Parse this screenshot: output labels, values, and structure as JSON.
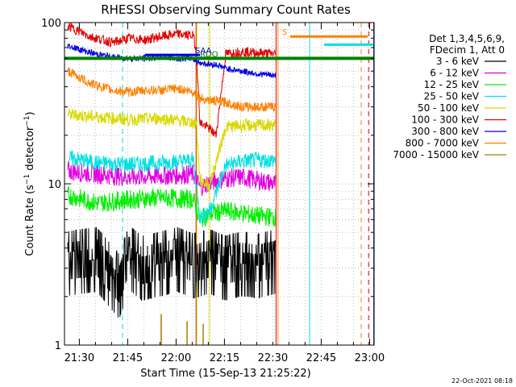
{
  "chart_data": {
    "type": "line",
    "title": "RHESSI Observing Summary Count Rates",
    "xlabel": "Start Time (15-Sep-13 21:25:22)",
    "ylabel_main": "Count Rate (s",
    "ylabel_sup": "−1",
    "ylabel_tail": " detector",
    "ylabel_end": ")",
    "x_unit": "minutes after 21:25:22",
    "xlim": [
      0,
      96
    ],
    "ylim": [
      1,
      100
    ],
    "y_scale": "log",
    "grid": true,
    "x_ticks": [
      {
        "label": "21:30",
        "value": 4.6
      },
      {
        "label": "21:45",
        "value": 19.6
      },
      {
        "label": "22:00",
        "value": 34.6
      },
      {
        "label": "22:15",
        "value": 49.6
      },
      {
        "label": "22:30",
        "value": 64.6
      },
      {
        "label": "22:45",
        "value": 79.6
      },
      {
        "label": "23:00",
        "value": 94.6
      }
    ],
    "y_ticks": [
      {
        "label": "1",
        "value": 1
      },
      {
        "label": "10",
        "value": 10
      },
      {
        "label": "100",
        "value": 100
      }
    ],
    "legend": {
      "placement": "right",
      "header": [
        "Det 1,3,4,5,6,9,",
        "FDecim 1, Att 0"
      ]
    },
    "series": [
      {
        "name": "3 - 6 keV",
        "color": "#000000",
        "x": [
          1,
          10,
          17,
          20,
          24,
          30,
          35,
          40,
          45,
          50,
          55,
          60,
          65.5
        ],
        "y": [
          3.2,
          3.4,
          2.3,
          3.5,
          3.0,
          3.2,
          3.4,
          3.1,
          3.3,
          3.0,
          3.2,
          3.1,
          3.3
        ]
      },
      {
        "name": "6 - 12 keV",
        "color": "#e000e0",
        "x": [
          1,
          10,
          20,
          30,
          40,
          42,
          45,
          50,
          55,
          60,
          65.5
        ],
        "y": [
          12,
          11.5,
          11,
          11.2,
          11.5,
          9.5,
          10.2,
          10.8,
          11,
          10.5,
          10
        ]
      },
      {
        "name": "12 - 25 keV",
        "color": "#00ee00",
        "x": [
          1,
          10,
          20,
          30,
          40,
          42,
          45,
          50,
          55,
          60,
          65.5
        ],
        "y": [
          8.5,
          7.6,
          8.0,
          8.2,
          8.0,
          6.0,
          6.5,
          6.8,
          6.6,
          6.3,
          6.2
        ]
      },
      {
        "name": "25 - 50 keV",
        "color": "#00e0e0",
        "x": [
          1,
          10,
          20,
          30,
          40,
          42,
          45,
          50,
          55,
          60,
          65.5
        ],
        "y": [
          14.5,
          13.5,
          13.2,
          13.5,
          14.0,
          6.2,
          6.8,
          13.0,
          13.8,
          14.0,
          14.0
        ]
      },
      {
        "name": "50 - 100 keV",
        "color": "#d8d800",
        "x": [
          1,
          10,
          20,
          30,
          40,
          41,
          42,
          45,
          50,
          55,
          60,
          65.5
        ],
        "y": [
          27,
          26,
          25,
          25.5,
          24,
          23,
          10.5,
          9.8,
          22.5,
          23,
          23,
          23
        ]
      },
      {
        "name": "100 - 300 keV",
        "color": "#e00000",
        "x": [
          1,
          8,
          15,
          20,
          25,
          30,
          35,
          40,
          41,
          42,
          45,
          47,
          50,
          55,
          60,
          65.5
        ],
        "y": [
          95,
          82,
          75,
          80,
          78,
          82,
          85,
          83,
          60,
          24,
          22,
          20,
          64,
          66,
          65,
          64
        ]
      },
      {
        "name": "300 - 800 keV",
        "color": "#0000e0",
        "x": [
          1,
          8,
          15,
          20,
          25,
          30,
          35,
          40,
          41,
          45,
          47,
          50,
          55,
          60,
          65.5
        ],
        "y": [
          72,
          65,
          61,
          60,
          60,
          61,
          60,
          60,
          57,
          55,
          55,
          52,
          50,
          48,
          47
        ]
      },
      {
        "name": "800 - 7000 keV",
        "color": "#ff8000",
        "x": [
          1,
          8,
          15,
          20,
          25,
          30,
          35,
          40,
          42,
          45,
          50,
          55,
          60,
          65.5
        ],
        "y": [
          50,
          42,
          38,
          37,
          38,
          38,
          39,
          37,
          34,
          33,
          32,
          30,
          30,
          30
        ]
      },
      {
        "name": "7000 - 15000 keV",
        "color": "#a08000",
        "x": [
          30,
          31,
          38,
          39,
          43,
          44
        ],
        "y": [
          1.0,
          1.55,
          1.0,
          1.4,
          1.0,
          1.35
        ]
      }
    ],
    "flags": [
      {
        "label": "RDO",
        "color": "#008000",
        "x_start": 0,
        "x_end": 96,
        "level": 60
      },
      {
        "label": "SAA",
        "color": "#0000e0",
        "x_start": 25,
        "x_end": 42,
        "level": 63
      },
      {
        "label": "S",
        "color": "#ff8000",
        "x_start": 70,
        "x_end": 94,
        "level": 82
      },
      {
        "label": "",
        "color": "#00e0e0",
        "x_start": 80.5,
        "x_end": 95.8,
        "level": 73
      }
    ],
    "markers": [
      {
        "x": 0,
        "color": "#00e0e0",
        "style": "solid"
      },
      {
        "x": 18,
        "color": "#00e0e0",
        "style": "dashed"
      },
      {
        "x": 40.8,
        "color": "#e00000",
        "style": "solid"
      },
      {
        "x": 41,
        "color": "#d8d800",
        "style": "solid"
      },
      {
        "x": 45,
        "color": "#d8d800",
        "style": "solid"
      },
      {
        "x": 65.6,
        "color": "#e00000",
        "style": "solid"
      },
      {
        "x": 66.2,
        "color": "#ff8000",
        "style": "solid"
      },
      {
        "x": 76,
        "color": "#00e0e0",
        "style": "solid"
      },
      {
        "x": 92,
        "color": "#ff8000",
        "style": "dashed"
      },
      {
        "x": 94.3,
        "color": "#e00000",
        "style": "dashed"
      },
      {
        "x": 95.9,
        "color": "#0000e0",
        "style": "solid"
      }
    ],
    "timestamp": "22-Oct-2021 08:18"
  }
}
